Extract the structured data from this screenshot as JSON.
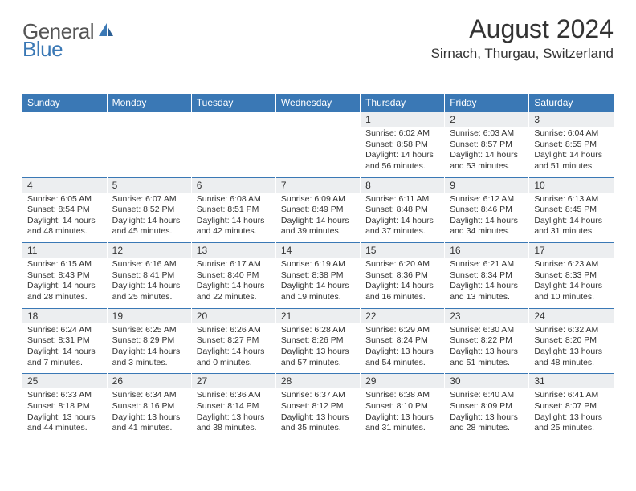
{
  "logo": {
    "text1": "General",
    "text2": "Blue"
  },
  "title": "August 2024",
  "location": "Sirnach, Thurgau, Switzerland",
  "colors": {
    "header_bg": "#3a78b5",
    "header_text": "#ffffff",
    "daynum_bg": "#eceef0",
    "border_blue": "#3a78b5",
    "text": "#333333"
  },
  "weekdays": [
    "Sunday",
    "Monday",
    "Tuesday",
    "Wednesday",
    "Thursday",
    "Friday",
    "Saturday"
  ],
  "weeks": [
    [
      null,
      null,
      null,
      null,
      {
        "n": "1",
        "sr": "6:02 AM",
        "ss": "8:58 PM",
        "dl": "14 hours and 56 minutes."
      },
      {
        "n": "2",
        "sr": "6:03 AM",
        "ss": "8:57 PM",
        "dl": "14 hours and 53 minutes."
      },
      {
        "n": "3",
        "sr": "6:04 AM",
        "ss": "8:55 PM",
        "dl": "14 hours and 51 minutes."
      }
    ],
    [
      {
        "n": "4",
        "sr": "6:05 AM",
        "ss": "8:54 PM",
        "dl": "14 hours and 48 minutes."
      },
      {
        "n": "5",
        "sr": "6:07 AM",
        "ss": "8:52 PM",
        "dl": "14 hours and 45 minutes."
      },
      {
        "n": "6",
        "sr": "6:08 AM",
        "ss": "8:51 PM",
        "dl": "14 hours and 42 minutes."
      },
      {
        "n": "7",
        "sr": "6:09 AM",
        "ss": "8:49 PM",
        "dl": "14 hours and 39 minutes."
      },
      {
        "n": "8",
        "sr": "6:11 AM",
        "ss": "8:48 PM",
        "dl": "14 hours and 37 minutes."
      },
      {
        "n": "9",
        "sr": "6:12 AM",
        "ss": "8:46 PM",
        "dl": "14 hours and 34 minutes."
      },
      {
        "n": "10",
        "sr": "6:13 AM",
        "ss": "8:45 PM",
        "dl": "14 hours and 31 minutes."
      }
    ],
    [
      {
        "n": "11",
        "sr": "6:15 AM",
        "ss": "8:43 PM",
        "dl": "14 hours and 28 minutes."
      },
      {
        "n": "12",
        "sr": "6:16 AM",
        "ss": "8:41 PM",
        "dl": "14 hours and 25 minutes."
      },
      {
        "n": "13",
        "sr": "6:17 AM",
        "ss": "8:40 PM",
        "dl": "14 hours and 22 minutes."
      },
      {
        "n": "14",
        "sr": "6:19 AM",
        "ss": "8:38 PM",
        "dl": "14 hours and 19 minutes."
      },
      {
        "n": "15",
        "sr": "6:20 AM",
        "ss": "8:36 PM",
        "dl": "14 hours and 16 minutes."
      },
      {
        "n": "16",
        "sr": "6:21 AM",
        "ss": "8:34 PM",
        "dl": "14 hours and 13 minutes."
      },
      {
        "n": "17",
        "sr": "6:23 AM",
        "ss": "8:33 PM",
        "dl": "14 hours and 10 minutes."
      }
    ],
    [
      {
        "n": "18",
        "sr": "6:24 AM",
        "ss": "8:31 PM",
        "dl": "14 hours and 7 minutes."
      },
      {
        "n": "19",
        "sr": "6:25 AM",
        "ss": "8:29 PM",
        "dl": "14 hours and 3 minutes."
      },
      {
        "n": "20",
        "sr": "6:26 AM",
        "ss": "8:27 PM",
        "dl": "14 hours and 0 minutes."
      },
      {
        "n": "21",
        "sr": "6:28 AM",
        "ss": "8:26 PM",
        "dl": "13 hours and 57 minutes."
      },
      {
        "n": "22",
        "sr": "6:29 AM",
        "ss": "8:24 PM",
        "dl": "13 hours and 54 minutes."
      },
      {
        "n": "23",
        "sr": "6:30 AM",
        "ss": "8:22 PM",
        "dl": "13 hours and 51 minutes."
      },
      {
        "n": "24",
        "sr": "6:32 AM",
        "ss": "8:20 PM",
        "dl": "13 hours and 48 minutes."
      }
    ],
    [
      {
        "n": "25",
        "sr": "6:33 AM",
        "ss": "8:18 PM",
        "dl": "13 hours and 44 minutes."
      },
      {
        "n": "26",
        "sr": "6:34 AM",
        "ss": "8:16 PM",
        "dl": "13 hours and 41 minutes."
      },
      {
        "n": "27",
        "sr": "6:36 AM",
        "ss": "8:14 PM",
        "dl": "13 hours and 38 minutes."
      },
      {
        "n": "28",
        "sr": "6:37 AM",
        "ss": "8:12 PM",
        "dl": "13 hours and 35 minutes."
      },
      {
        "n": "29",
        "sr": "6:38 AM",
        "ss": "8:10 PM",
        "dl": "13 hours and 31 minutes."
      },
      {
        "n": "30",
        "sr": "6:40 AM",
        "ss": "8:09 PM",
        "dl": "13 hours and 28 minutes."
      },
      {
        "n": "31",
        "sr": "6:41 AM",
        "ss": "8:07 PM",
        "dl": "13 hours and 25 minutes."
      }
    ]
  ]
}
